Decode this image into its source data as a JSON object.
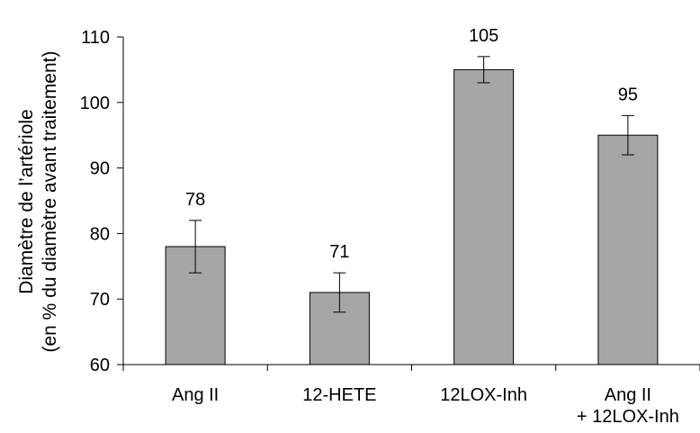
{
  "chart_data": {
    "type": "bar",
    "title": "",
    "xlabel": "",
    "ylabel_lines": [
      "Diamètre de l’artériole",
      "(en % du diamètre avant traitement)"
    ],
    "categories": [
      [
        "Ang II"
      ],
      [
        "12-HETE"
      ],
      [
        "12LOX-Inh"
      ],
      [
        "Ang II",
        "+ 12LOX-Inh"
      ]
    ],
    "values": [
      78,
      71,
      105,
      95
    ],
    "errors": [
      4,
      3,
      2,
      3
    ],
    "data_labels": [
      "78",
      "71",
      "105",
      "95"
    ],
    "ylim": [
      60,
      110
    ],
    "yticks": [
      60,
      70,
      80,
      90,
      100,
      110
    ],
    "grid": false,
    "legend": "none",
    "bar_color": "#a6a6a6",
    "bar_edge_color": "#000000"
  }
}
